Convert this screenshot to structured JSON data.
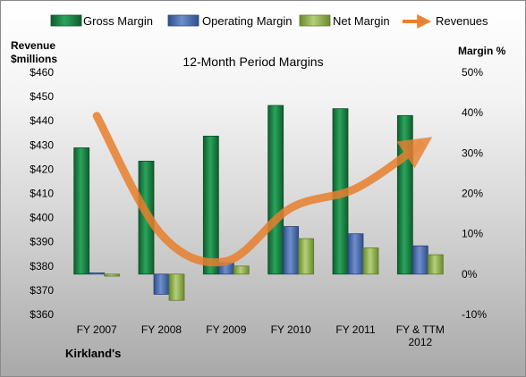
{
  "chart_data": {
    "type": "bar",
    "title": "12-Month Period Margins",
    "company": "Kirkland's",
    "categories": [
      "FY 2007",
      "FY 2008",
      "FY 2009",
      "FY 2010",
      "FY 2011",
      "FY & TTM 2012"
    ],
    "left_axis": {
      "label_line1": "Revenue",
      "label_line2": "$millions",
      "ylim": [
        360,
        460
      ],
      "step": 10
    },
    "right_axis": {
      "label": "Margin %",
      "ylim": [
        -10,
        50
      ],
      "step": 10
    },
    "series": [
      {
        "name": "Gross Margin",
        "color": "#1e8447",
        "values": [
          31.3,
          28.0,
          34.2,
          41.8,
          41.0,
          39.3
        ]
      },
      {
        "name": "Operating Margin",
        "color": "#4a6fb0",
        "values": [
          0.3,
          -5.0,
          2.8,
          11.8,
          10.0,
          7.0
        ]
      },
      {
        "name": "Net Margin",
        "color": "#8fac4e",
        "values": [
          -0.5,
          -6.5,
          2.0,
          8.8,
          6.5,
          4.8
        ]
      }
    ],
    "revenues": {
      "name": "Revenues",
      "color": "#e87f2e",
      "values": [
        442,
        393,
        382,
        404,
        412,
        430
      ]
    },
    "legend_position": "top"
  }
}
